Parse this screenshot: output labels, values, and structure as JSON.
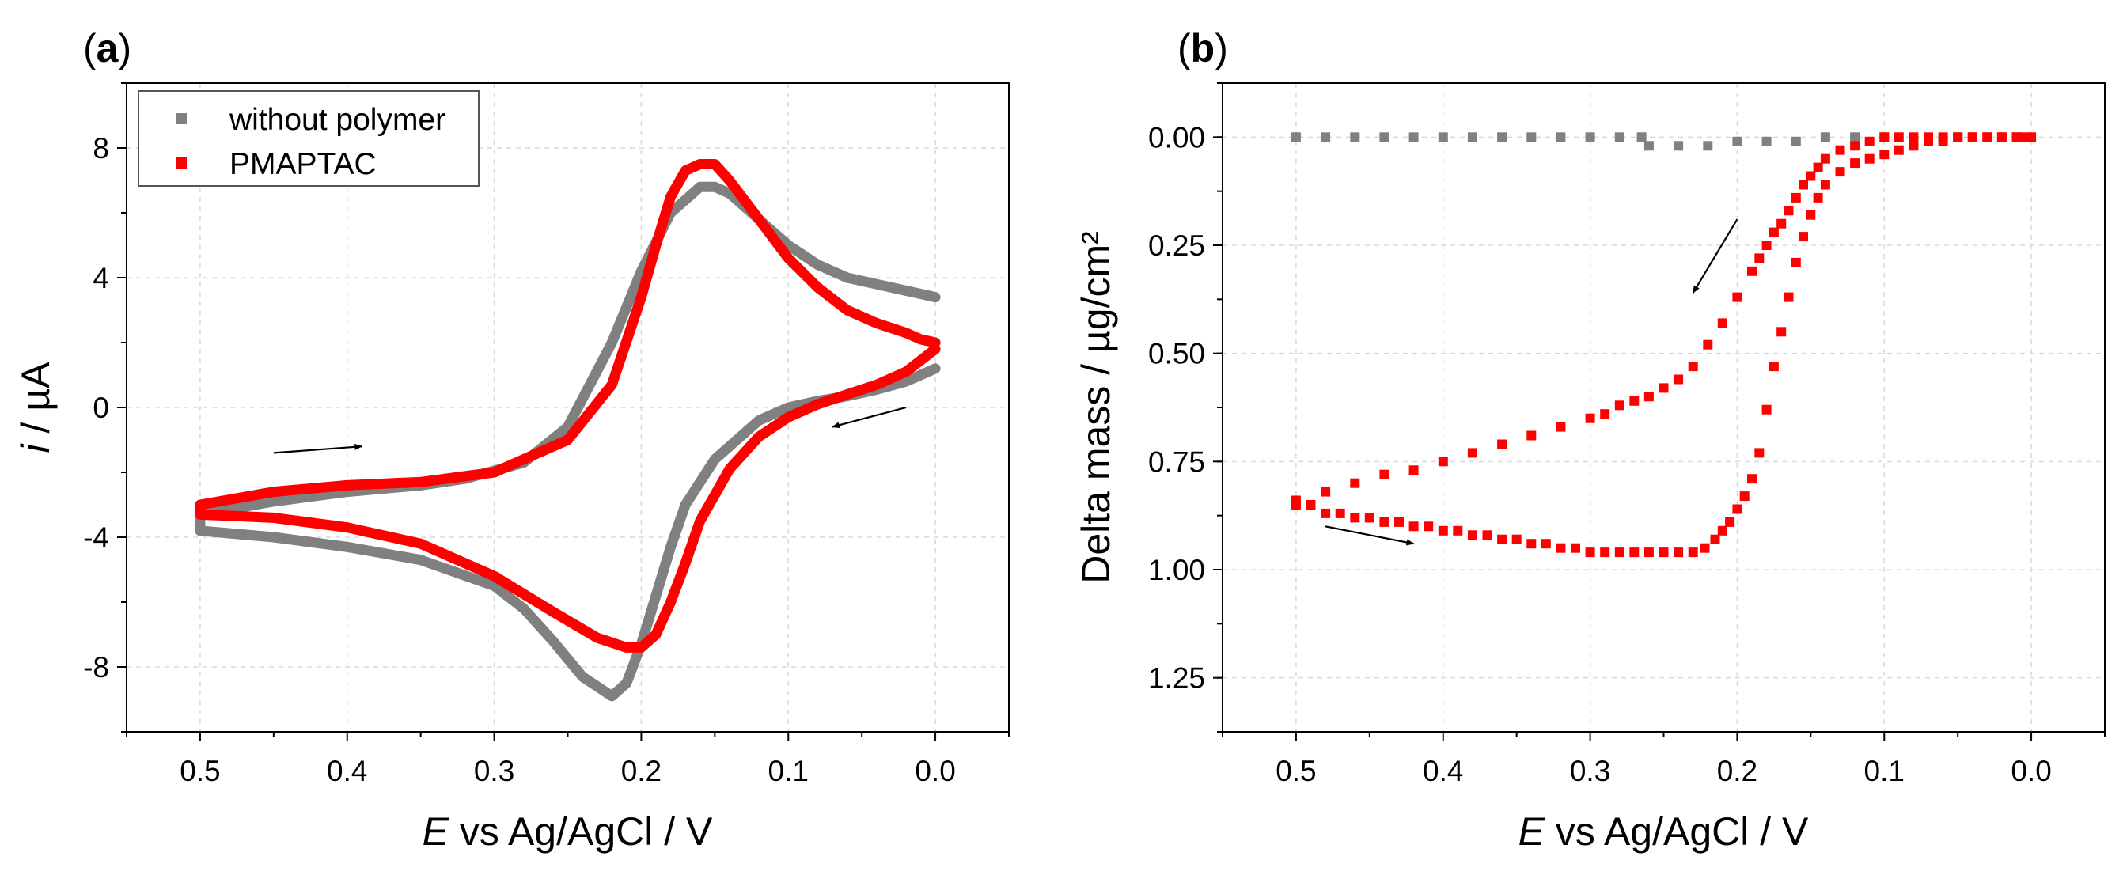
{
  "chart_data": [
    {
      "panel": "a",
      "type": "line",
      "title": "",
      "xlabel_italic": "E",
      "xlabel_rest": " vs Ag/AgCl / V",
      "ylabel_italic": "i",
      "ylabel_rest": " / µA",
      "xlim": [
        0.55,
        -0.05
      ],
      "ylim": [
        -10,
        10
      ],
      "xticks": [
        0.5,
        0.4,
        0.3,
        0.2,
        0.1,
        0.0
      ],
      "xtick_labels": [
        "0.5",
        "0.4",
        "0.3",
        "0.2",
        "0.1",
        "0.0"
      ],
      "yticks": [
        -8,
        -4,
        0,
        4,
        8
      ],
      "ytick_labels": [
        "-8",
        "-4",
        "0",
        "4",
        "8"
      ],
      "grid": true,
      "legend_placement": "top-left",
      "series": [
        {
          "name": "without polymer",
          "color": "#808080",
          "x": [
            0.0,
            0.01,
            0.02,
            0.04,
            0.06,
            0.08,
            0.1,
            0.12,
            0.14,
            0.15,
            0.16,
            0.18,
            0.2,
            0.22,
            0.25,
            0.28,
            0.32,
            0.35,
            0.4,
            0.45,
            0.5,
            0.5,
            0.45,
            0.4,
            0.35,
            0.3,
            0.28,
            0.26,
            0.24,
            0.22,
            0.21,
            0.2,
            0.19,
            0.18,
            0.17,
            0.15,
            0.12,
            0.1,
            0.08,
            0.06,
            0.04,
            0.02,
            0.01,
            0.0
          ],
          "y": [
            3.4,
            3.5,
            3.6,
            3.8,
            4.0,
            4.4,
            5.0,
            5.8,
            6.6,
            6.8,
            6.8,
            6.0,
            4.2,
            2.0,
            -0.6,
            -1.7,
            -2.2,
            -2.4,
            -2.6,
            -2.9,
            -3.3,
            -3.8,
            -4.0,
            -4.3,
            -4.7,
            -5.5,
            -6.2,
            -7.2,
            -8.3,
            -8.9,
            -8.5,
            -7.3,
            -5.8,
            -4.3,
            -3.0,
            -1.6,
            -0.4,
            0.0,
            0.2,
            0.35,
            0.55,
            0.8,
            1.0,
            1.2
          ]
        },
        {
          "name": "PMAPTAC",
          "color": "#ff0000",
          "x": [
            0.0,
            0.01,
            0.02,
            0.04,
            0.06,
            0.08,
            0.1,
            0.12,
            0.14,
            0.15,
            0.16,
            0.17,
            0.18,
            0.19,
            0.2,
            0.22,
            0.25,
            0.3,
            0.35,
            0.4,
            0.45,
            0.5,
            0.5,
            0.45,
            0.4,
            0.35,
            0.3,
            0.26,
            0.23,
            0.21,
            0.2,
            0.19,
            0.18,
            0.17,
            0.16,
            0.14,
            0.12,
            0.1,
            0.08,
            0.06,
            0.04,
            0.02,
            0.0
          ],
          "y": [
            2.0,
            2.1,
            2.3,
            2.6,
            3.0,
            3.7,
            4.6,
            5.8,
            7.0,
            7.5,
            7.5,
            7.3,
            6.5,
            5.0,
            3.4,
            0.7,
            -1.0,
            -2.0,
            -2.3,
            -2.4,
            -2.6,
            -3.0,
            -3.3,
            -3.4,
            -3.7,
            -4.2,
            -5.2,
            -6.3,
            -7.1,
            -7.4,
            -7.4,
            -7.0,
            -6.0,
            -4.8,
            -3.5,
            -1.9,
            -0.9,
            -0.3,
            0.1,
            0.4,
            0.7,
            1.1,
            1.8
          ]
        }
      ]
    },
    {
      "panel": "b",
      "type": "scatter",
      "title": "",
      "xlabel_italic": "E",
      "xlabel_rest": " vs Ag/AgCl / V",
      "ylabel": "Delta mass / µg/cm²",
      "xlim": [
        0.55,
        -0.05
      ],
      "ylim": [
        -0.125,
        1.375
      ],
      "y_inverted": true,
      "xticks": [
        0.5,
        0.4,
        0.3,
        0.2,
        0.1,
        0.0
      ],
      "xtick_labels": [
        "0.5",
        "0.4",
        "0.3",
        "0.2",
        "0.1",
        "0.0"
      ],
      "yticks": [
        0.0,
        0.25,
        0.5,
        0.75,
        1.0,
        1.25
      ],
      "ytick_labels": [
        "0.00",
        "0.25",
        "0.50",
        "0.75",
        "1.00",
        "1.25"
      ],
      "grid": true,
      "series": [
        {
          "name": "without polymer",
          "color": "#808080",
          "x": [
            0.5,
            0.48,
            0.46,
            0.44,
            0.42,
            0.4,
            0.38,
            0.36,
            0.34,
            0.32,
            0.3,
            0.28,
            0.265,
            0.26,
            0.24,
            0.22,
            0.2,
            0.18,
            0.16,
            0.14,
            0.12,
            0.1,
            0.08,
            0.07
          ],
          "y": [
            0.0,
            0.0,
            0.0,
            0.0,
            0.0,
            0.0,
            0.0,
            0.0,
            0.0,
            0.0,
            0.0,
            0.0,
            0.0,
            0.02,
            0.02,
            0.02,
            0.01,
            0.01,
            0.01,
            0.0,
            0.0,
            0.0,
            0.01,
            0.01
          ]
        },
        {
          "name": "PMAPTAC",
          "color": "#ff0000",
          "x": [
            0.5,
            0.49,
            0.48,
            0.47,
            0.46,
            0.45,
            0.44,
            0.43,
            0.42,
            0.41,
            0.4,
            0.39,
            0.38,
            0.37,
            0.36,
            0.35,
            0.34,
            0.33,
            0.32,
            0.31,
            0.3,
            0.29,
            0.28,
            0.27,
            0.26,
            0.25,
            0.24,
            0.23,
            0.222,
            0.215,
            0.21,
            0.205,
            0.2,
            0.195,
            0.19,
            0.185,
            0.18,
            0.175,
            0.17,
            0.165,
            0.16,
            0.155,
            0.15,
            0.145,
            0.14,
            0.13,
            0.12,
            0.11,
            0.1,
            0.09,
            0.08,
            0.07,
            0.06,
            0.05,
            0.04,
            0.03,
            0.02,
            0.01,
            0.005,
            0.0,
            0.01,
            0.02,
            0.03,
            0.04,
            0.05,
            0.06,
            0.07,
            0.08,
            0.09,
            0.1,
            0.11,
            0.12,
            0.13,
            0.14,
            0.145,
            0.15,
            0.155,
            0.16,
            0.165,
            0.17,
            0.175,
            0.18,
            0.185,
            0.19,
            0.2,
            0.21,
            0.22,
            0.23,
            0.24,
            0.25,
            0.26,
            0.27,
            0.28,
            0.29,
            0.3,
            0.32,
            0.34,
            0.36,
            0.38,
            0.4,
            0.42,
            0.44,
            0.46,
            0.48,
            0.5
          ],
          "y": [
            0.85,
            0.85,
            0.87,
            0.87,
            0.88,
            0.88,
            0.89,
            0.89,
            0.9,
            0.9,
            0.91,
            0.91,
            0.92,
            0.92,
            0.93,
            0.93,
            0.94,
            0.94,
            0.95,
            0.95,
            0.96,
            0.96,
            0.96,
            0.96,
            0.96,
            0.96,
            0.96,
            0.96,
            0.95,
            0.93,
            0.91,
            0.89,
            0.86,
            0.83,
            0.79,
            0.73,
            0.63,
            0.53,
            0.45,
            0.37,
            0.29,
            0.23,
            0.18,
            0.14,
            0.11,
            0.08,
            0.06,
            0.05,
            0.04,
            0.03,
            0.02,
            0.01,
            0.01,
            0.0,
            0.0,
            0.0,
            0.0,
            0.0,
            0.0,
            0.0,
            0.0,
            0.0,
            0.0,
            0.0,
            0.0,
            0.0,
            0.0,
            0.0,
            0.0,
            0.0,
            0.01,
            0.02,
            0.03,
            0.05,
            0.07,
            0.09,
            0.11,
            0.14,
            0.17,
            0.2,
            0.22,
            0.25,
            0.28,
            0.31,
            0.37,
            0.43,
            0.48,
            0.53,
            0.56,
            0.58,
            0.6,
            0.61,
            0.62,
            0.64,
            0.65,
            0.67,
            0.69,
            0.71,
            0.73,
            0.75,
            0.77,
            0.78,
            0.8,
            0.82,
            0.84
          ]
        }
      ]
    }
  ],
  "panel_a_label": "a",
  "panel_b_label": "b",
  "arrows": [
    {
      "panel": "a",
      "from": [
        0.45,
        -1.4
      ],
      "to": [
        0.39,
        -1.2
      ]
    },
    {
      "panel": "a",
      "from": [
        0.02,
        0.0
      ],
      "to": [
        0.07,
        -0.6
      ]
    },
    {
      "panel": "b",
      "from": [
        0.2,
        0.19
      ],
      "to": [
        0.23,
        0.36
      ]
    },
    {
      "panel": "b",
      "from": [
        0.48,
        0.9
      ],
      "to": [
        0.42,
        0.94
      ]
    }
  ]
}
